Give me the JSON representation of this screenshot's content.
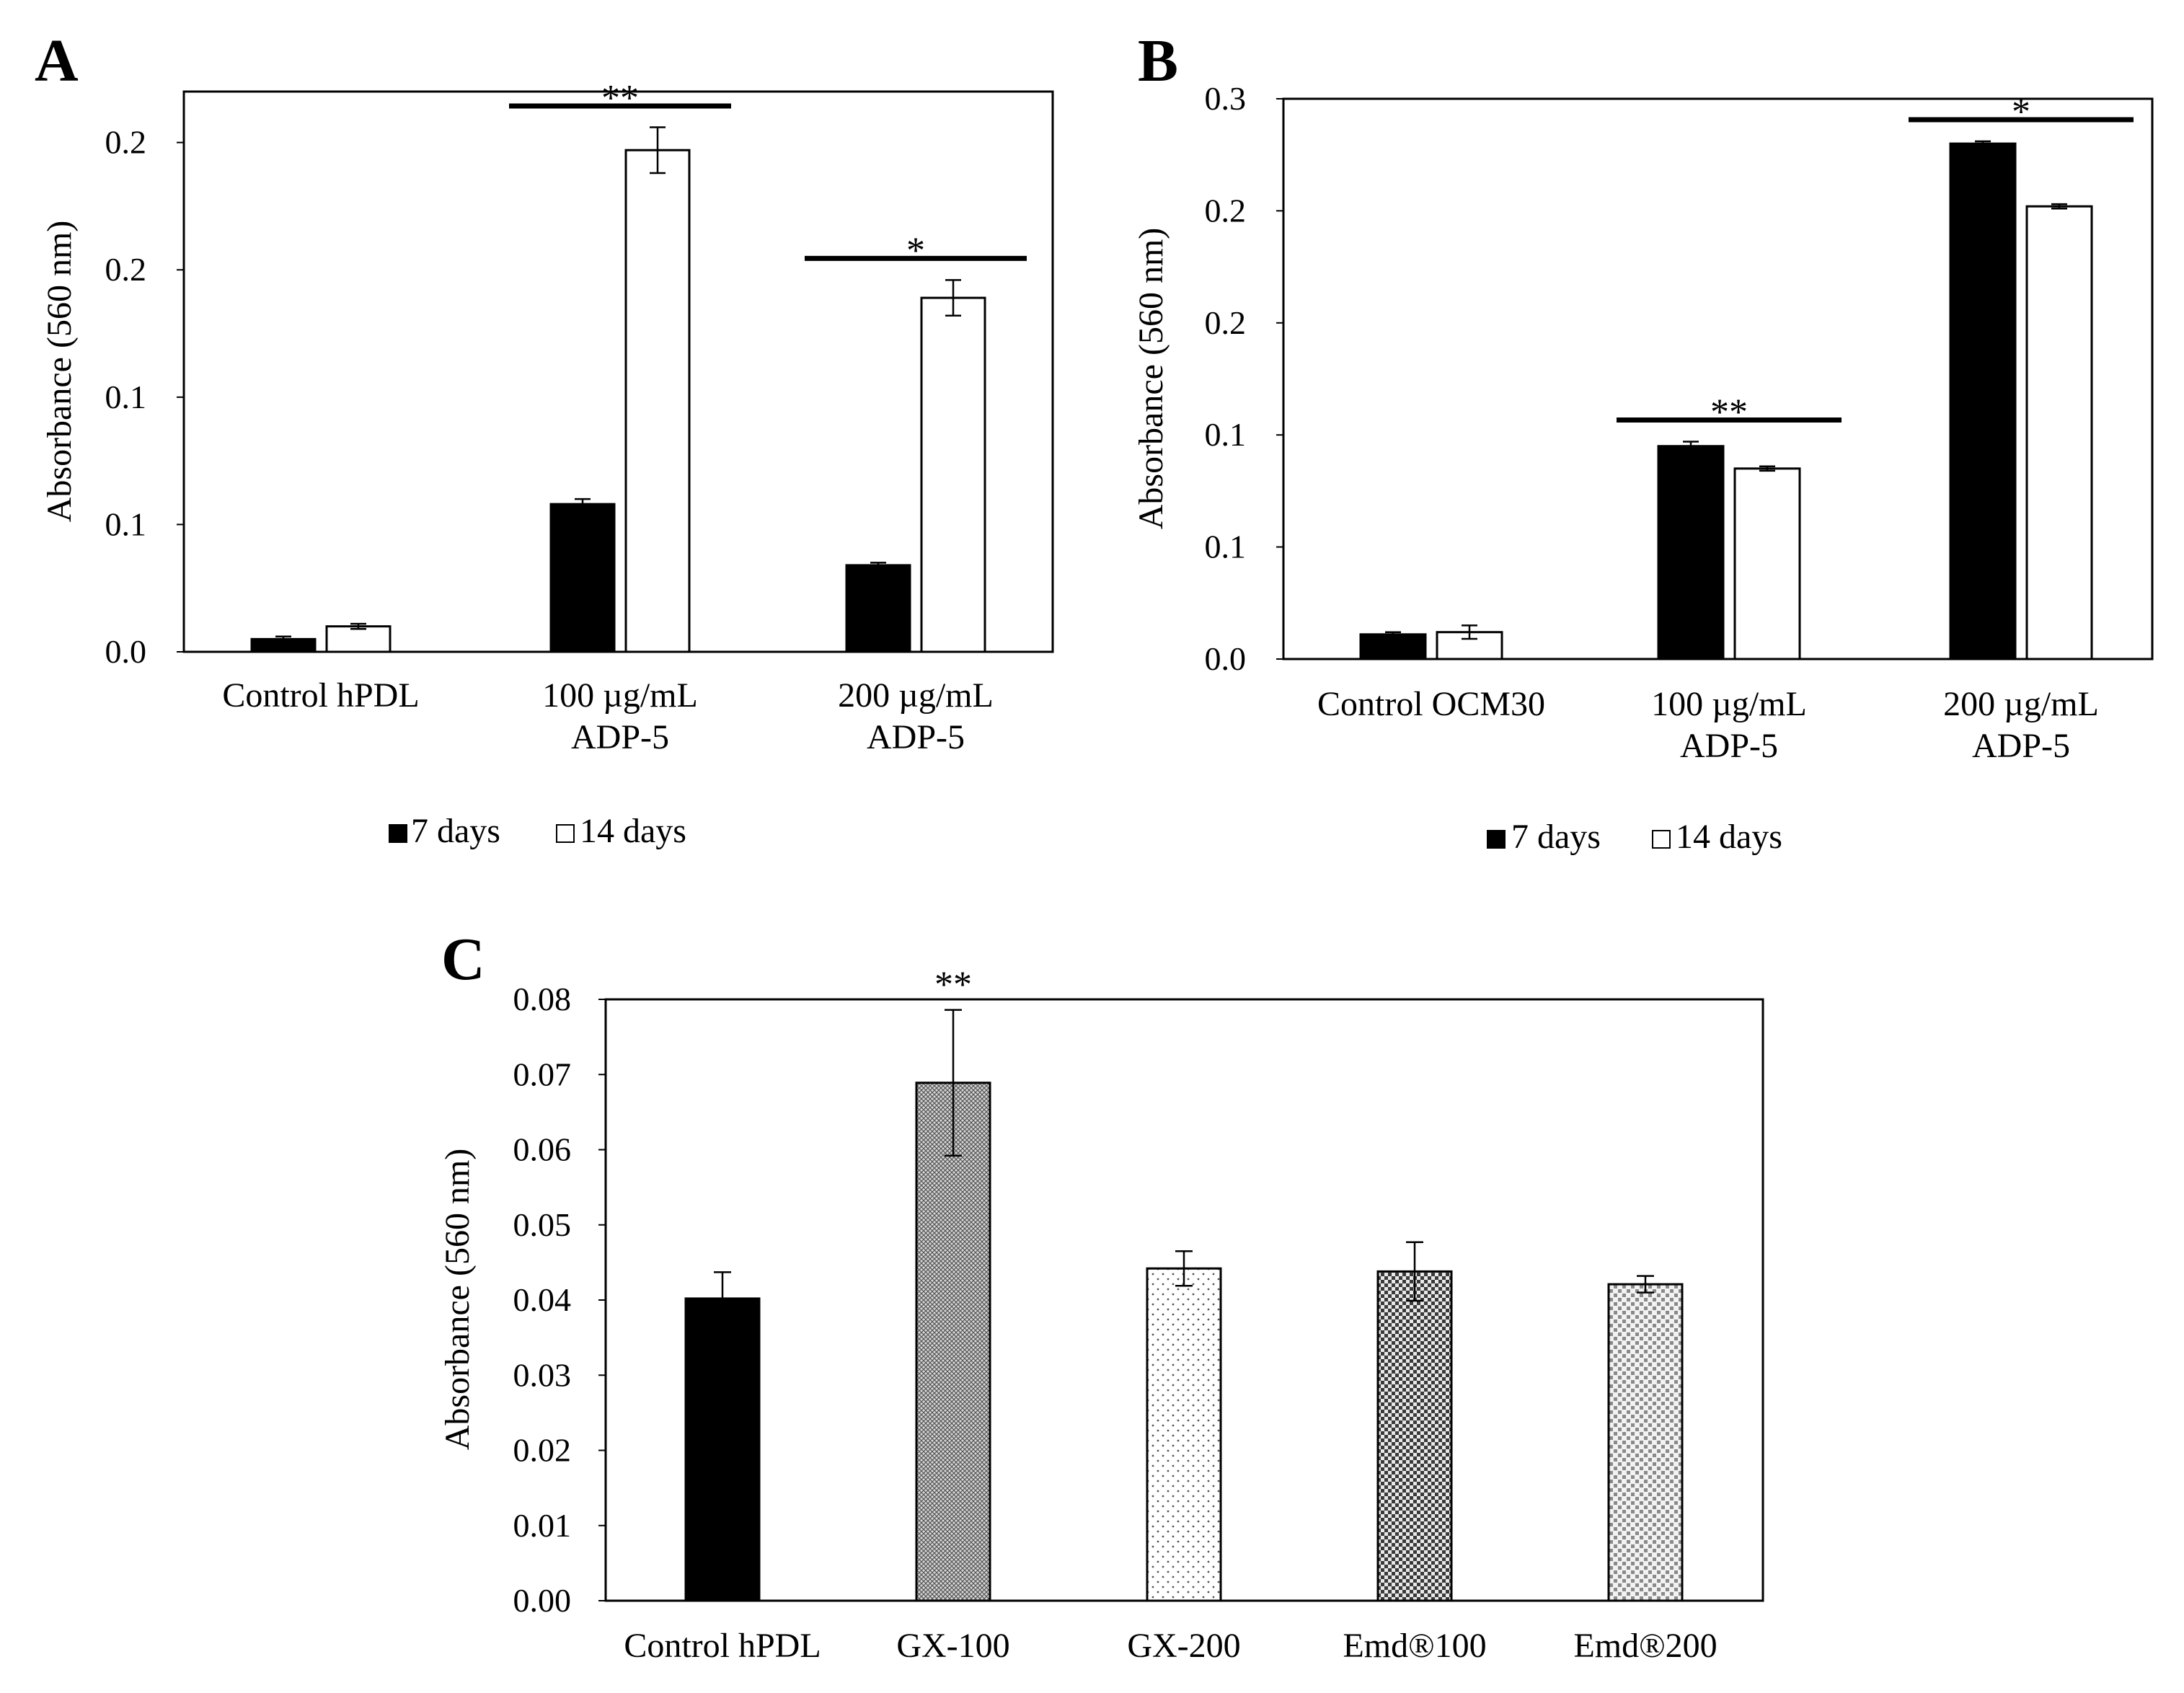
{
  "chart_data": [
    {
      "panel": "A",
      "type": "bar",
      "ylabel": "Absorbance (560 nm)",
      "ylim": [
        0,
        0.22
      ],
      "yticks": [
        0.0,
        0.05,
        0.1,
        0.15,
        0.2
      ],
      "ytick_labels": [
        "0.0",
        "0.1",
        "0.1",
        "0.2",
        "0.2"
      ],
      "categories": [
        [
          "Control hPDL"
        ],
        [
          "100 µg/mL",
          "ADP-5"
        ],
        [
          "200 µg/mL",
          "ADP-5"
        ]
      ],
      "series": [
        {
          "name": "7 days",
          "values": [
            0.005,
            0.058,
            0.034
          ],
          "errors": [
            0.001,
            0.002,
            0.001
          ]
        },
        {
          "name": "14 days",
          "values": [
            0.01,
            0.197,
            0.139
          ],
          "errors": [
            0.001,
            0.009,
            0.007
          ]
        }
      ],
      "significance": [
        {
          "category_index": 1,
          "label": "**"
        },
        {
          "category_index": 2,
          "label": "*"
        }
      ],
      "legend": [
        "7 days",
        "14 days"
      ]
    },
    {
      "panel": "B",
      "type": "bar",
      "ylabel": "Absorbance (560 nm)",
      "ylim": [
        0,
        0.25
      ],
      "yticks": [
        0.0,
        0.05,
        0.1,
        0.15,
        0.2,
        0.25
      ],
      "ytick_labels": [
        "0.0",
        "0.1",
        "0.1",
        "0.2",
        "0.2",
        "0.3"
      ],
      "categories": [
        [
          "Control OCM30"
        ],
        [
          "100 µg/mL",
          "ADP-5"
        ],
        [
          "200 µg/mL",
          "ADP-5"
        ]
      ],
      "series": [
        {
          "name": "7 days",
          "values": [
            0.011,
            0.095,
            0.23
          ],
          "errors": [
            0.001,
            0.002,
            0.001
          ]
        },
        {
          "name": "14 days",
          "values": [
            0.012,
            0.085,
            0.202
          ],
          "errors": [
            0.003,
            0.001,
            0.001
          ]
        }
      ],
      "significance": [
        {
          "category_index": 1,
          "label": "**"
        },
        {
          "category_index": 2,
          "label": "*"
        }
      ],
      "legend": [
        "7 days",
        "14 days"
      ]
    },
    {
      "panel": "C",
      "type": "bar",
      "ylabel": "Absorbance (560 nm)",
      "ylim": [
        0,
        0.08
      ],
      "yticks": [
        0.0,
        0.01,
        0.02,
        0.03,
        0.04,
        0.05,
        0.06,
        0.07,
        0.08
      ],
      "ytick_labels": [
        "0.00",
        "0.01",
        "0.02",
        "0.03",
        "0.04",
        "0.05",
        "0.06",
        "0.07",
        "0.08"
      ],
      "categories": [
        "Control hPDL",
        "GX-100",
        "GX-200",
        "Emd®100",
        "Emd®200"
      ],
      "values": [
        0.0402,
        0.0689,
        0.0442,
        0.0438,
        0.0421
      ],
      "errors": [
        0.0035,
        0.0097,
        0.0023,
        0.0039,
        0.0011
      ],
      "fills": [
        "solid-black",
        "crosshatch",
        "sparse-dots",
        "dense-check",
        "light-check"
      ],
      "significance": [
        {
          "category_index": 1,
          "label": "**"
        }
      ]
    }
  ]
}
